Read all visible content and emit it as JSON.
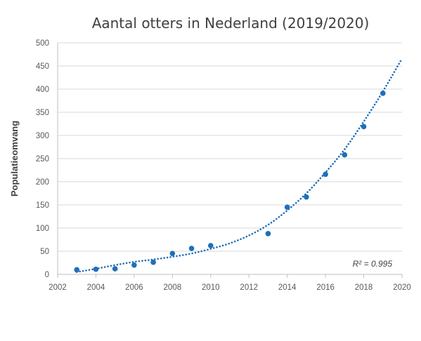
{
  "chart_data": {
    "type": "scatter",
    "title": "Aantal otters in Nederland (2019/2020)",
    "xlabel": "",
    "ylabel": "Populatieomvang",
    "xlim": [
      2002,
      2020
    ],
    "ylim": [
      0,
      500
    ],
    "x_ticks": [
      2002,
      2004,
      2006,
      2008,
      2010,
      2012,
      2014,
      2016,
      2018,
      2020
    ],
    "y_ticks": [
      0,
      50,
      100,
      150,
      200,
      250,
      300,
      350,
      400,
      450,
      500
    ],
    "grid": true,
    "series": [
      {
        "color": "#1f6fb8",
        "points": [
          {
            "x": 2003,
            "y": 10
          },
          {
            "x": 2004,
            "y": 11
          },
          {
            "x": 2005,
            "y": 12
          },
          {
            "x": 2006,
            "y": 20
          },
          {
            "x": 2007,
            "y": 26
          },
          {
            "x": 2008,
            "y": 45
          },
          {
            "x": 2009,
            "y": 56
          },
          {
            "x": 2010,
            "y": 62
          },
          {
            "x": 2013,
            "y": 88
          },
          {
            "x": 2014,
            "y": 145
          },
          {
            "x": 2015,
            "y": 167
          },
          {
            "x": 2016,
            "y": 216
          },
          {
            "x": 2017,
            "y": 258
          },
          {
            "x": 2018,
            "y": 319
          },
          {
            "x": 2019,
            "y": 391
          }
        ]
      }
    ],
    "trendline": {
      "type": "polynomial",
      "style": "dotted",
      "color": "#1f6fb8",
      "x_range": [
        2003,
        2020
      ],
      "points": [
        {
          "x": 2003,
          "y": 5
        },
        {
          "x": 2004,
          "y": 12
        },
        {
          "x": 2005,
          "y": 20
        },
        {
          "x": 2006,
          "y": 27
        },
        {
          "x": 2007,
          "y": 32
        },
        {
          "x": 2008,
          "y": 38
        },
        {
          "x": 2009,
          "y": 45
        },
        {
          "x": 2010,
          "y": 55
        },
        {
          "x": 2011,
          "y": 67
        },
        {
          "x": 2012,
          "y": 84
        },
        {
          "x": 2013,
          "y": 107
        },
        {
          "x": 2014,
          "y": 138
        },
        {
          "x": 2015,
          "y": 175
        },
        {
          "x": 2016,
          "y": 220
        },
        {
          "x": 2017,
          "y": 270
        },
        {
          "x": 2018,
          "y": 330
        },
        {
          "x": 2019,
          "y": 395
        },
        {
          "x": 2020,
          "y": 466
        }
      ],
      "r_squared_label": "R² = 0.995"
    }
  }
}
